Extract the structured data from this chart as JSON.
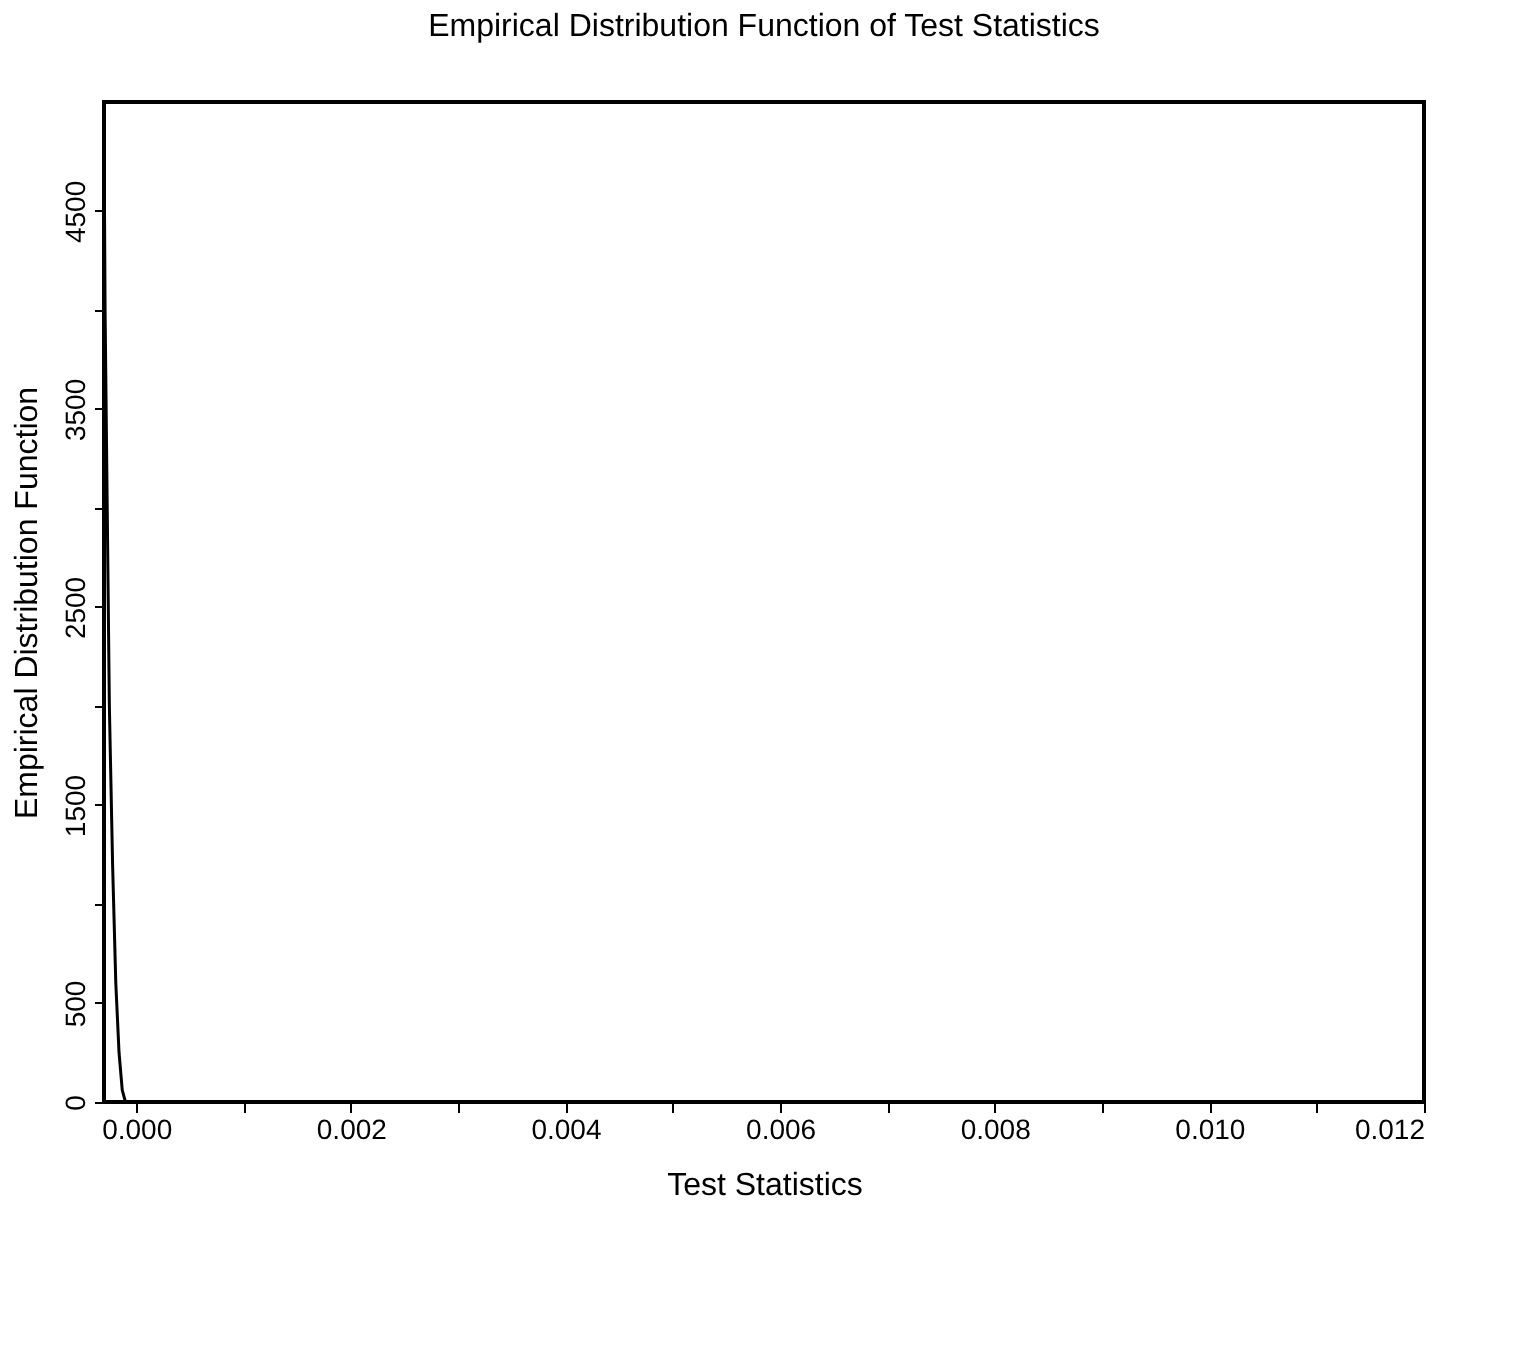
{
  "chart_data": {
    "type": "line",
    "title": "Empirical Distribution Function of Test Statistics",
    "xlabel": "Test Statistics",
    "ylabel": "Empirical Distribution Function",
    "x": [
      -0.0003,
      -0.00029,
      -0.00027,
      -0.00025,
      -0.00022,
      -0.00019,
      -0.00016,
      -0.00013,
      -0.0001,
      0.012
    ],
    "series": [
      {
        "color": "#000000",
        "values": [
          4950,
          4000,
          3000,
          2000,
          1200,
          600,
          250,
          60,
          0,
          0
        ]
      }
    ],
    "xlim": [
      -0.0003,
      0.012
    ],
    "ylim": [
      0,
      5050
    ],
    "xticks": [
      {
        "value": 0,
        "label": "0.000"
      },
      {
        "value": 0.001,
        "label": null
      },
      {
        "value": 0.002,
        "label": "0.002"
      },
      {
        "value": 0.003,
        "label": null
      },
      {
        "value": 0.004,
        "label": "0.004"
      },
      {
        "value": 0.005,
        "label": null
      },
      {
        "value": 0.006,
        "label": "0.006"
      },
      {
        "value": 0.007,
        "label": null
      },
      {
        "value": 0.008,
        "label": "0.008"
      },
      {
        "value": 0.009,
        "label": null
      },
      {
        "value": 0.01,
        "label": "0.010"
      },
      {
        "value": 0.011,
        "label": null
      },
      {
        "value": 0.012,
        "label": "0.012"
      }
    ],
    "yticks": [
      0,
      500,
      {
        "value": 1000,
        "label": null
      },
      1500,
      {
        "value": 2000,
        "label": null
      },
      2500,
      {
        "value": 3000,
        "label": null
      },
      3500,
      {
        "value": 4000,
        "label": null
      },
      4500
    ],
    "grid": false,
    "legend": false,
    "marker": "none",
    "line_style": "solid"
  }
}
